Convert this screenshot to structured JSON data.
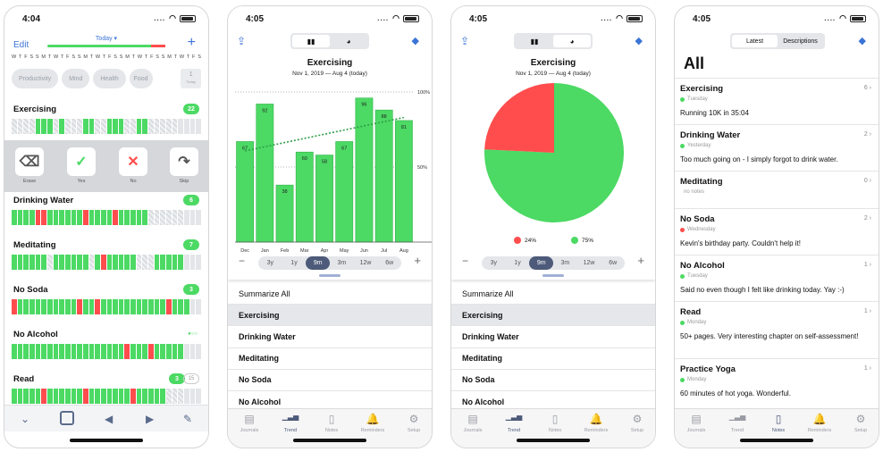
{
  "phone1": {
    "time": "4:04",
    "edit_label": "Edit",
    "today_label": "Today ▾",
    "plus": "+",
    "weekdays": [
      "W",
      "T",
      "F",
      "S",
      "S",
      "M",
      "T",
      "W",
      "T",
      "F",
      "S",
      "S",
      "M",
      "T",
      "W",
      "T",
      "F",
      "S",
      "S",
      "M",
      "T",
      "W",
      "T",
      "F",
      "S",
      "S",
      "M",
      "T",
      "W",
      "T",
      "F",
      "S"
    ],
    "categories": [
      "Productivity",
      "Mind",
      "Health",
      "Food"
    ],
    "today_box": {
      "num": "1",
      "label": "Today"
    },
    "habits": [
      {
        "name": "Exercising",
        "badge": "22"
      },
      {
        "name": "Drinking Water",
        "badge": "6"
      },
      {
        "name": "Meditating",
        "badge": "7"
      },
      {
        "name": "No Soda",
        "badge": "3"
      },
      {
        "name": "No Alcohol",
        "badge": ""
      },
      {
        "name": "Read",
        "badge": "3",
        "badge_total": "15"
      }
    ],
    "actions": [
      {
        "label": "Erase",
        "icon": "⌫"
      },
      {
        "label": "Yes",
        "icon": "✓"
      },
      {
        "label": "No",
        "icon": "✕"
      },
      {
        "label": "Skip",
        "icon": "↷"
      }
    ]
  },
  "phone2": {
    "time": "4:05",
    "title": "Exercising",
    "subtitle": "Nov 1, 2019 — Aug 4 (today)",
    "y_labels": [
      "100%",
      "50%"
    ],
    "ranges": [
      "3y",
      "1y",
      "9m",
      "3m",
      "12w",
      "6w"
    ],
    "active_range": "9m",
    "list": [
      "Summarize All",
      "Exercising",
      "Drinking Water",
      "Meditating",
      "No Soda",
      "No Alcohol"
    ],
    "selected": "Exercising",
    "tabs": [
      "Journals",
      "Trend",
      "Notes",
      "Reminders",
      "Setup"
    ],
    "active_tab": "Trend"
  },
  "chart_data": [
    {
      "type": "bar",
      "title": "Exercising",
      "subtitle": "Nov 1, 2019 — Aug 4 (today)",
      "categories": [
        "Dec",
        "Jan",
        "Feb",
        "Mar",
        "Apr",
        "May",
        "Jun",
        "Jul",
        "Aug"
      ],
      "values": [
        67,
        92,
        38,
        60,
        58,
        67,
        96,
        88,
        81
      ],
      "ylim": [
        0,
        100
      ],
      "y_ticks": [
        "50%",
        "100%"
      ],
      "trendline": true,
      "colors": {
        "bar": "#4cd964",
        "bar_edge": "#34b34c",
        "trend": "#2e9e47"
      }
    },
    {
      "type": "pie",
      "title": "Exercising",
      "subtitle": "Nov 1, 2019 — Aug 4 (today)",
      "slices": [
        {
          "label": "24%",
          "value": 24,
          "color": "#ff4d4d"
        },
        {
          "label": "75%",
          "value": 75,
          "color": "#4cd964"
        }
      ]
    }
  ],
  "phone3": {
    "time": "4:05",
    "title": "Exercising",
    "subtitle": "Nov 1, 2019 — Aug 4 (today)",
    "legend": [
      {
        "label": "24%",
        "color": "#ff4d4d"
      },
      {
        "label": "75%",
        "color": "#4cd964"
      }
    ],
    "ranges": [
      "3y",
      "1y",
      "9m",
      "3m",
      "12w",
      "6w"
    ],
    "list": [
      "Summarize All",
      "Exercising",
      "Drinking Water",
      "Meditating",
      "No Soda",
      "No Alcohol"
    ],
    "tabs": [
      "Journals",
      "Trend",
      "Notes",
      "Reminders",
      "Setup"
    ]
  },
  "phone4": {
    "time": "4:05",
    "seg": [
      "Latest",
      "Descriptions"
    ],
    "heading": "All",
    "notes": [
      {
        "title": "Exercising",
        "count": "6",
        "day": "Tuesday",
        "dot": "#4cd964",
        "text": "Running 10K in 35:04"
      },
      {
        "title": "Drinking Water",
        "count": "2",
        "day": "Yesterday",
        "dot": "#4cd964",
        "text": "Too much going on - I simply forgot to drink water."
      },
      {
        "title": "Meditating",
        "count": "0",
        "day": "",
        "dot": "",
        "text": "",
        "empty": "no notes"
      },
      {
        "title": "No Soda",
        "count": "2",
        "day": "Wednesday",
        "dot": "#ff4d4d",
        "text": "Kevin's birthday party. Couldn't help it!"
      },
      {
        "title": "No Alcohol",
        "count": "1",
        "day": "Tuesday",
        "dot": "#4cd964",
        "text": "Said no even though I felt like drinking today. Yay :-)"
      },
      {
        "title": "Read",
        "count": "1",
        "day": "Monday",
        "dot": "#4cd964",
        "text": "50+ pages. Very interesting chapter on self-assessment!"
      },
      {
        "title": "Practice Yoga",
        "count": "1",
        "day": "Monday",
        "dot": "#4cd964",
        "text": "60 minutes of hot yoga. Wonderful."
      }
    ],
    "tabs": [
      "Journals",
      "Trend",
      "Notes",
      "Reminders",
      "Setup"
    ],
    "active_tab": "Notes"
  }
}
